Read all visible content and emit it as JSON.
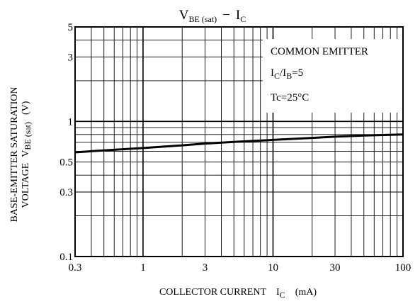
{
  "chart_data": {
    "type": "line",
    "title": {
      "main": "V",
      "main_sub": "BE (sat)",
      "dash": "−",
      "var": "I",
      "var_sub": "C"
    },
    "xlabel": {
      "text": "COLLECTOR CURRENT",
      "sym": "I",
      "sym_sub": "C",
      "unit": "(mA)"
    },
    "ylabel": {
      "line1": "BASE-EMITTER SATURATION",
      "line2_prefix": "VOLTAGE",
      "sym": "V",
      "sym_sub": "BE (sat)",
      "unit": "(V)"
    },
    "x_scale": "log",
    "y_scale": "log",
    "xlim": [
      0.3,
      100
    ],
    "ylim": [
      0.1,
      5
    ],
    "x_ticks": [
      "0.3",
      "1",
      "3",
      "10",
      "30",
      "100"
    ],
    "y_ticks": [
      "0.1",
      "0.3",
      "0.5",
      "1",
      "3",
      "5"
    ],
    "grid": true,
    "annotations": {
      "line1": "COMMON EMITTER",
      "line2": {
        "a": "I",
        "a_sub": "C",
        "mid": "/I",
        "b_sub": "B",
        "tail": "=5"
      },
      "line3": "Tc=25°C"
    },
    "series": [
      {
        "x": [
          0.3,
          0.5,
          1,
          2,
          3,
          5,
          10,
          20,
          30,
          50,
          100
        ],
        "y": [
          0.59,
          0.61,
          0.635,
          0.665,
          0.685,
          0.705,
          0.73,
          0.755,
          0.77,
          0.785,
          0.8
        ]
      }
    ]
  }
}
